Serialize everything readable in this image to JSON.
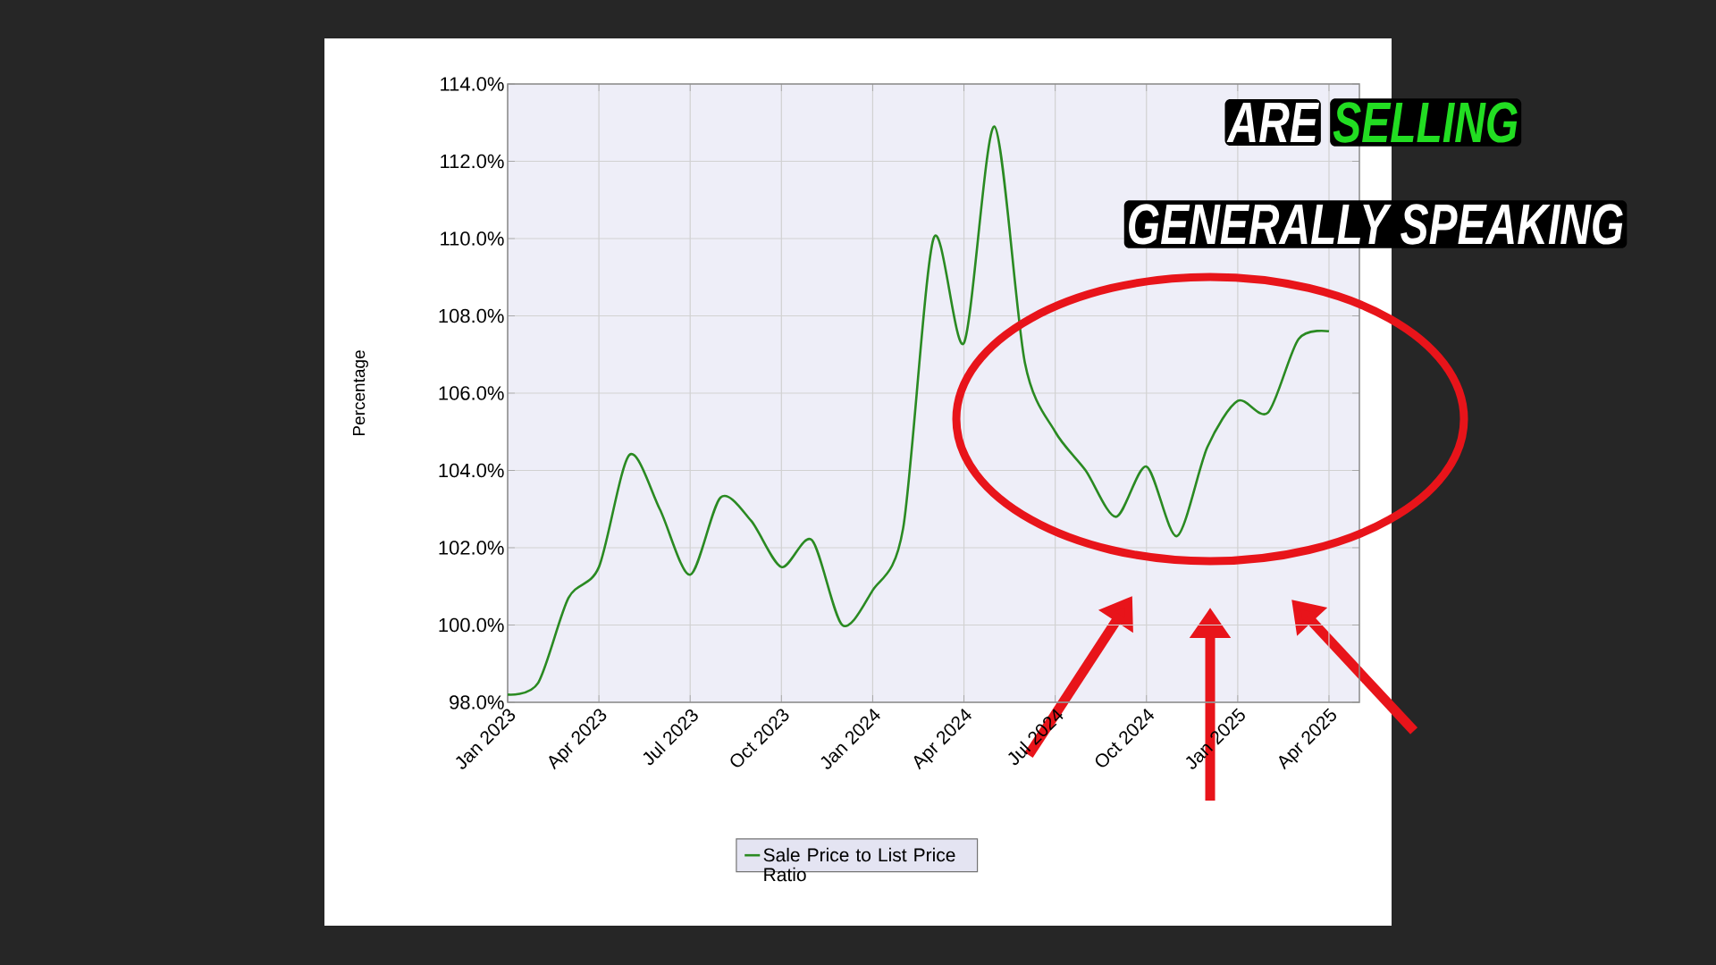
{
  "chart_data": {
    "type": "line",
    "ylabel": "Percentage",
    "x": [
      "2023-01",
      "2023-02",
      "2023-03",
      "2023-04",
      "2023-05",
      "2023-06",
      "2023-07",
      "2023-08",
      "2023-09",
      "2023-10",
      "2023-11",
      "2023-12",
      "2024-01",
      "2024-02",
      "2024-03",
      "2024-04",
      "2024-05",
      "2024-06",
      "2024-07",
      "2024-08",
      "2024-09",
      "2024-10",
      "2024-11",
      "2024-12",
      "2025-01",
      "2025-02",
      "2025-03",
      "2025-04"
    ],
    "series": [
      {
        "name": "Sale Price to List Price Ratio",
        "color": "#2a8a22",
        "values": [
          98.2,
          98.5,
          100.7,
          101.5,
          104.4,
          103.0,
          101.3,
          103.3,
          102.7,
          101.5,
          102.2,
          100.0,
          100.9,
          102.5,
          110.0,
          107.3,
          112.9,
          106.8,
          105.0,
          104.0,
          102.8,
          104.1,
          102.3,
          104.6,
          105.8,
          105.5,
          107.4,
          107.6
        ]
      }
    ],
    "xlim": [
      "2023-01",
      "2025-05"
    ],
    "xticks": [
      {
        "value": "2023-01",
        "label": "Jan 2023"
      },
      {
        "value": "2023-04",
        "label": "Apr 2023"
      },
      {
        "value": "2023-07",
        "label": "Jul 2023"
      },
      {
        "value": "2023-10",
        "label": "Oct 2023"
      },
      {
        "value": "2024-01",
        "label": "Jan 2024"
      },
      {
        "value": "2024-04",
        "label": "Apr 2024"
      },
      {
        "value": "2024-07",
        "label": "Jul 2024"
      },
      {
        "value": "2024-10",
        "label": "Oct 2024"
      },
      {
        "value": "2025-01",
        "label": "Jan 2025"
      },
      {
        "value": "2025-04",
        "label": "Apr 2025"
      }
    ],
    "ylim": [
      98,
      114
    ],
    "yticks": [
      {
        "value": 98,
        "label": "98.0%"
      },
      {
        "value": 100,
        "label": "100.0%"
      },
      {
        "value": 102,
        "label": "102.0%"
      },
      {
        "value": 104,
        "label": "104.0%"
      },
      {
        "value": 106,
        "label": "106.0%"
      },
      {
        "value": 108,
        "label": "108.0%"
      },
      {
        "value": 110,
        "label": "110.0%"
      },
      {
        "value": 112,
        "label": "112.0%"
      },
      {
        "value": 114,
        "label": "114.0%"
      }
    ],
    "grid": true,
    "legend": "bottom",
    "marker": "none",
    "line_style": "solid",
    "annotations": [
      "ARE",
      "SELLING",
      "GENERALLY SPEAKING"
    ]
  }
}
